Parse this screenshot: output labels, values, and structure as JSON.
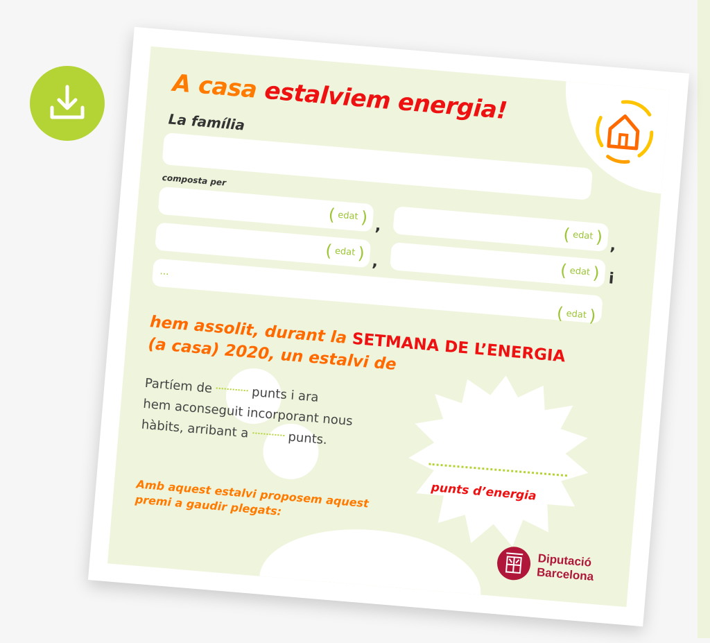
{
  "download_button": {
    "icon": "download-icon",
    "color": "#b4d334"
  },
  "card": {
    "title_part1": "A casa",
    "title_part2": "estalviem energia!",
    "family_label": "La família",
    "composed_label": "composta per",
    "age_label": "edat",
    "comma": ",",
    "and": "i",
    "ellipsis": "...",
    "achieved_line1": "hem assolit, durant la ",
    "achieved_highlight": "SETMANA DE L’ENERGIA",
    "achieved_line2": "(a casa) 2020, un estalvi de",
    "para_1a": "Partíem de",
    "para_1b": "punts i ara",
    "para_2": "hem aconseguit incorporant nous",
    "para_3a": "hàbits, arribant a",
    "para_3b": "punts.",
    "points_label": "punts d’energia",
    "prize_line1": "Amb aquest estalvi proposem aquest",
    "prize_line2": "premi a gaudir plegats:",
    "org_line1": "Diputació",
    "org_line2": "Barcelona",
    "colors": {
      "orange": "#ff7a00",
      "red": "#ee1111",
      "green": "#b4d334",
      "panel": "#eef5dc",
      "org": "#b0163a"
    }
  }
}
